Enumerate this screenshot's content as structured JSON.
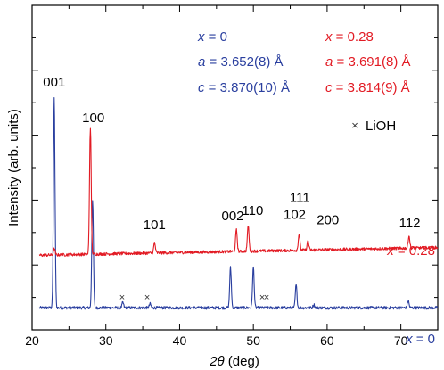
{
  "chart_data": {
    "type": "line",
    "xlabel_var": "2θ",
    "xlabel_unit": " (deg)",
    "ylabel": "Intensity (arb. units)",
    "xlim": [
      20,
      75
    ],
    "x_ticks": [
      20,
      30,
      40,
      50,
      60,
      70
    ],
    "y_ticks_arbitrary": [
      0,
      1,
      2,
      3,
      4,
      5
    ],
    "grid": false,
    "series": [
      {
        "name": "x = 0",
        "color": "#2a3f9f",
        "baseline": 0.34,
        "offset": 0.34,
        "peaks": [
          {
            "x": 23.0,
            "y": 3.58
          },
          {
            "x": 28.2,
            "y": 2.01
          },
          {
            "x": 32.3,
            "y": 0.42
          },
          {
            "x": 36.0,
            "y": 0.4
          },
          {
            "x": 46.9,
            "y": 0.96
          },
          {
            "x": 50.0,
            "y": 0.97
          },
          {
            "x": 55.8,
            "y": 0.69
          },
          {
            "x": 58.2,
            "y": 0.39
          },
          {
            "x": 71.0,
            "y": 0.45
          }
        ]
      },
      {
        "name": "x = 0.28",
        "color": "#e21b24",
        "baseline": 1.15,
        "peaks": [
          {
            "x": 23.0,
            "y": 1.25
          },
          {
            "x": 27.9,
            "y": 3.11
          },
          {
            "x": 36.6,
            "y": 1.31
          },
          {
            "x": 47.7,
            "y": 1.48
          },
          {
            "x": 49.3,
            "y": 1.55
          },
          {
            "x": 56.2,
            "y": 1.4
          },
          {
            "x": 57.4,
            "y": 1.3
          },
          {
            "x": 71.1,
            "y": 1.34
          }
        ]
      }
    ],
    "peak_labels": [
      {
        "text": "001",
        "x": 23.0,
        "y": 3.75
      },
      {
        "text": "100",
        "x": 28.3,
        "y": 3.2
      },
      {
        "text": "101",
        "x": 36.6,
        "y": 1.55
      },
      {
        "text": "002",
        "x": 47.2,
        "y": 1.69
      },
      {
        "text": "110",
        "x": 49.9,
        "y": 1.77
      },
      {
        "text": "111",
        "x": 56.3,
        "y": 1.97
      },
      {
        "text": "102",
        "x": 55.6,
        "y": 1.71
      },
      {
        "text": "200",
        "x": 60.1,
        "y": 1.63
      },
      {
        "text": "112",
        "x": 71.2,
        "y": 1.58
      }
    ],
    "lioh_marks": [
      {
        "x": 32.2,
        "y": 0.45
      },
      {
        "x": 35.6,
        "y": 0.45
      },
      {
        "x": 51.2,
        "y": 0.45
      },
      {
        "x": 51.8,
        "y": 0.45
      }
    ],
    "legend_entries": {
      "lioh": {
        "mark": "×",
        "label": "LiOH"
      }
    },
    "series_labels": [
      {
        "var": "x",
        "rest": " = 0.28",
        "color": "#e21b24"
      },
      {
        "var": "x",
        "rest": " = 0",
        "color": "#2a3f9f"
      }
    ],
    "annotations": {
      "blue": {
        "color": "#2a3f9f",
        "lines": [
          {
            "var": "x",
            "rest": " = 0"
          },
          {
            "var": "a",
            "rest": " = 3.652(8) Å"
          },
          {
            "var": "c",
            "rest": " = 3.870(10) Å"
          }
        ]
      },
      "red": {
        "color": "#e21b24",
        "lines": [
          {
            "var": "x",
            "rest": " = 0.28"
          },
          {
            "var": "a",
            "rest": " = 3.691(8) Å"
          },
          {
            "var": "c",
            "rest": " = 3.814(9) Å"
          }
        ]
      }
    }
  }
}
